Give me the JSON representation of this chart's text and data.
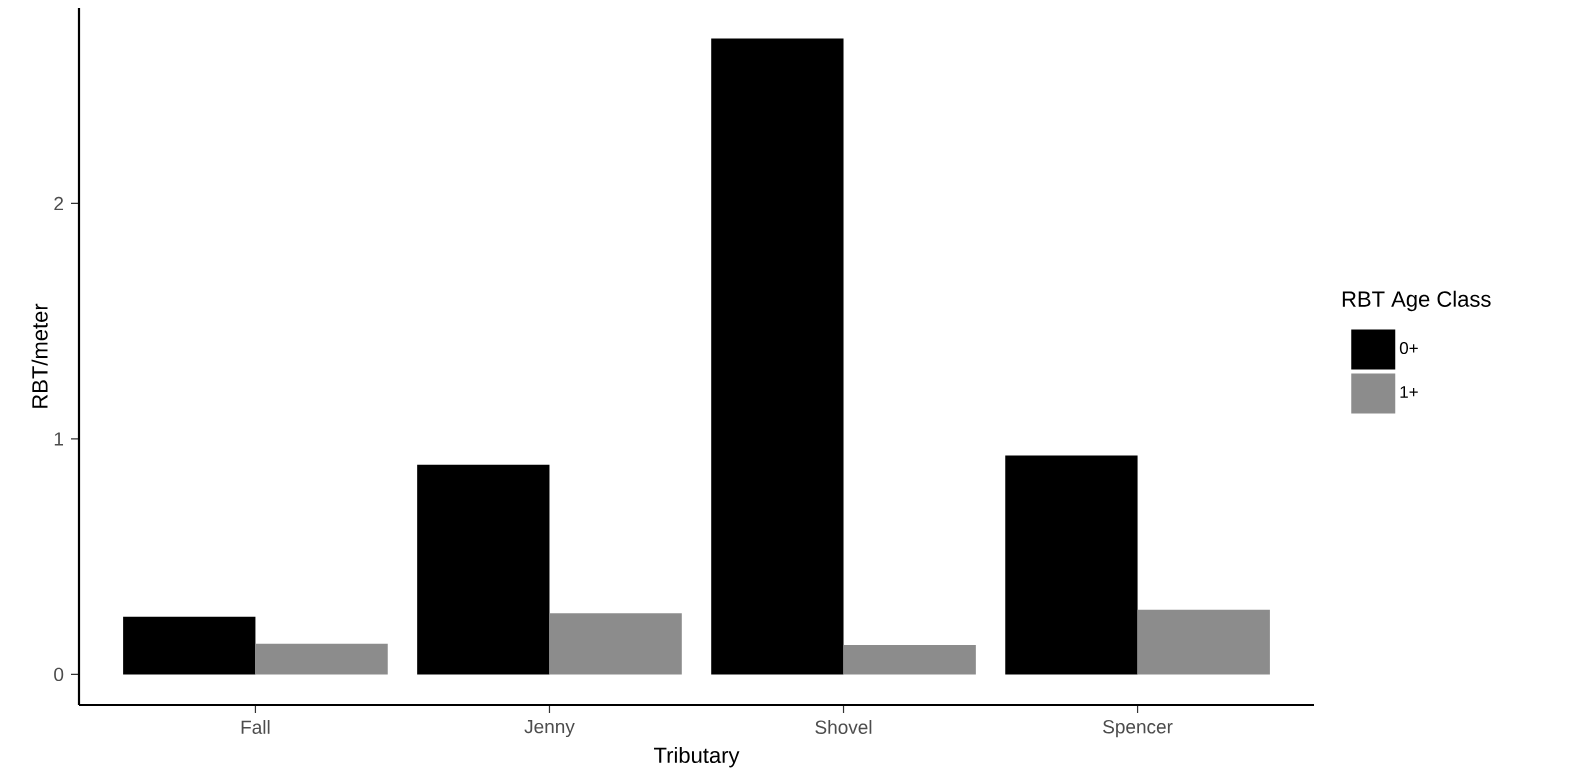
{
  "chart_data": {
    "type": "bar",
    "xlabel": "Tributary",
    "ylabel": "RBT/meter",
    "legend_title": "RBT Age Class",
    "categories": [
      "Fall",
      "Jenny",
      "Shovel",
      "Spencer"
    ],
    "series": [
      {
        "name": "0+",
        "color": "#000000",
        "values": [
          0.245,
          0.89,
          2.7,
          0.93
        ]
      },
      {
        "name": "1+",
        "color": "#8c8c8c",
        "values": [
          0.13,
          0.26,
          0.125,
          0.275
        ]
      }
    ],
    "ylim": [
      -0.13,
      2.83
    ],
    "yticks": [
      0,
      1,
      2
    ],
    "legend": "right"
  }
}
